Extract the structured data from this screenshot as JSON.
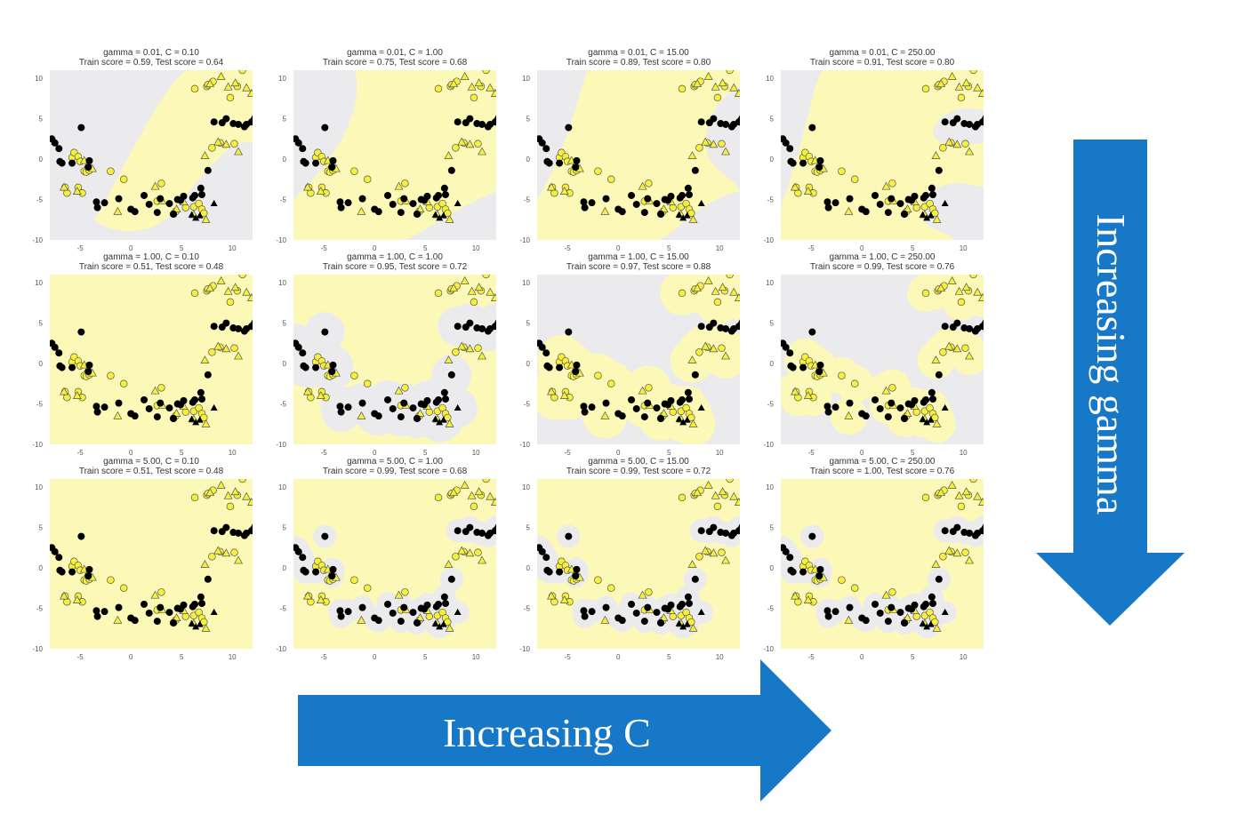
{
  "panels": [
    {
      "title_line1": "gamma = 0.01, C = 0.10",
      "title_line2": "Train score = 0.59, Test score = 0.64"
    },
    {
      "title_line1": "gamma = 0.01, C = 1.00",
      "title_line2": "Train score = 0.75, Test score = 0.68"
    },
    {
      "title_line1": "gamma = 0.01, C = 15.00",
      "title_line2": "Train score = 0.89, Test score = 0.80"
    },
    {
      "title_line1": "gamma = 0.01, C = 250.00",
      "title_line2": "Train score = 0.91, Test score = 0.80"
    },
    {
      "title_line1": "gamma = 1.00, C = 0.10",
      "title_line2": "Train score = 0.51, Test score = 0.48"
    },
    {
      "title_line1": "gamma = 1.00, C = 1.00",
      "title_line2": "Train score = 0.95, Test score = 0.72"
    },
    {
      "title_line1": "gamma = 1.00, C = 15.00",
      "title_line2": "Train score = 0.97, Test score = 0.88"
    },
    {
      "title_line1": "gamma = 1.00, C = 250.00",
      "title_line2": "Train score = 0.99, Test score = 0.76"
    },
    {
      "title_line1": "gamma = 5.00, C = 0.10",
      "title_line2": "Train score = 0.51, Test score = 0.48"
    },
    {
      "title_line1": "gamma = 5.00, C = 1.00",
      "title_line2": "Train score = 0.99, Test score = 0.68"
    },
    {
      "title_line1": "gamma = 5.00, C = 15.00",
      "title_line2": "Train score = 0.99, Test score = 0.72"
    },
    {
      "title_line1": "gamma = 5.00, C = 250.00",
      "title_line2": "Train score = 1.00, Test score = 0.76"
    }
  ],
  "arrows": {
    "c_label": "Increasing C",
    "gamma_label": "Increasing gamma",
    "color": "#1878c8"
  },
  "colors": {
    "region_yellow": "#fbf8b8",
    "region_gray": "#ebebee",
    "point_yellow": "#f7f03a",
    "point_black": "#000000"
  },
  "chart_data": {
    "type": "scatter",
    "description_grid": "3 rows (gamma) x 4 columns (C)",
    "gamma_values": [
      0.01,
      1.0,
      5.0
    ],
    "C_values": [
      0.1,
      1.0,
      15.0,
      250.0
    ],
    "xlim": [
      -8,
      12
    ],
    "ylim": [
      -10,
      11
    ],
    "x_ticks": [
      -5,
      0,
      5,
      10
    ],
    "y_ticks": [
      -10,
      -5,
      0,
      5,
      10
    ],
    "series": [
      {
        "marker": "circle-yellow",
        "x": [
          -6.5,
          -6.3,
          -5.8,
          -5.6,
          -5.2,
          -5.0,
          -4.6,
          -4.4,
          -4.1,
          -5.2,
          -4.8,
          -2.0,
          -0.7,
          2.6,
          3.0,
          4.2,
          4.4,
          5.4,
          6.2,
          6.7,
          7.0,
          7.2,
          6.3,
          7.5,
          8.1,
          7.6,
          9.8,
          10.5,
          11.0,
          8.0,
          8.8,
          10.2
        ],
        "y": [
          -3.5,
          -4.2,
          0.2,
          0.8,
          0.3,
          -0.3,
          -1.5,
          -1.6,
          -1.4,
          -3.5,
          -4.2,
          -1.5,
          -2.5,
          -5.2,
          -3.0,
          -6.8,
          -6.5,
          -6.0,
          -5.9,
          -5.5,
          -6.2,
          -6.7,
          8.7,
          9.0,
          9.6,
          9.2,
          7.6,
          9.0,
          11.0,
          1.4,
          2.0,
          1.9
        ]
      },
      {
        "marker": "triangle-yellow",
        "x": [
          -6.6,
          -5.3,
          -4.6,
          -4.2,
          -3.8,
          -1.3,
          2.4,
          3.1,
          4.5,
          5.2,
          6.2,
          7.4,
          7.8,
          8.9,
          9.6,
          10.3,
          11.4,
          11.9,
          7.3,
          8.6,
          9.4,
          10.6
        ],
        "y": [
          -3.5,
          -4.0,
          -0.2,
          -0.6,
          -1.2,
          -6.5,
          -3.4,
          -5.2,
          -6.2,
          -5.3,
          -6.9,
          -7.5,
          9.3,
          10.2,
          8.9,
          9.4,
          8.8,
          8.1,
          0.4,
          2.1,
          1.8,
          0.9
        ]
      },
      {
        "marker": "circle-black",
        "x": [
          -7.8,
          -7.5,
          -7.1,
          -7.0,
          -6.8,
          -5.8,
          -4.9,
          -4.2,
          -4.1,
          -3.4,
          -3.3,
          -2.6,
          -1.2,
          0.0,
          0.4,
          1.3,
          1.8,
          2.6,
          2.9,
          3.8,
          4.2,
          4.6,
          4.9,
          5.2,
          6.1,
          6.3,
          6.9,
          7.0,
          7.6,
          8.2,
          9.0,
          9.4,
          10.1,
          10.6,
          11.2,
          11.4,
          11.9
        ],
        "y": [
          2.5,
          2.0,
          1.3,
          -0.3,
          -0.5,
          -0.5,
          3.9,
          -1.0,
          -0.2,
          -5.3,
          -6.0,
          -5.4,
          -4.9,
          -6.2,
          -6.5,
          -4.5,
          -5.6,
          -6.6,
          -4.9,
          -5.5,
          -6.8,
          -5.0,
          -5.1,
          -4.6,
          -4.8,
          -4.5,
          -3.6,
          -4.4,
          -1.4,
          4.6,
          4.5,
          5.0,
          4.4,
          4.3,
          4.0,
          4.3,
          4.6
        ]
      },
      {
        "marker": "triangle-black",
        "x": [
          -7.5,
          6.0,
          6.4,
          6.8,
          8.2,
          12.0
        ],
        "y": [
          2.1,
          -6.9,
          -7.3,
          -7.0,
          -5.5,
          5.0
        ]
      }
    ]
  }
}
